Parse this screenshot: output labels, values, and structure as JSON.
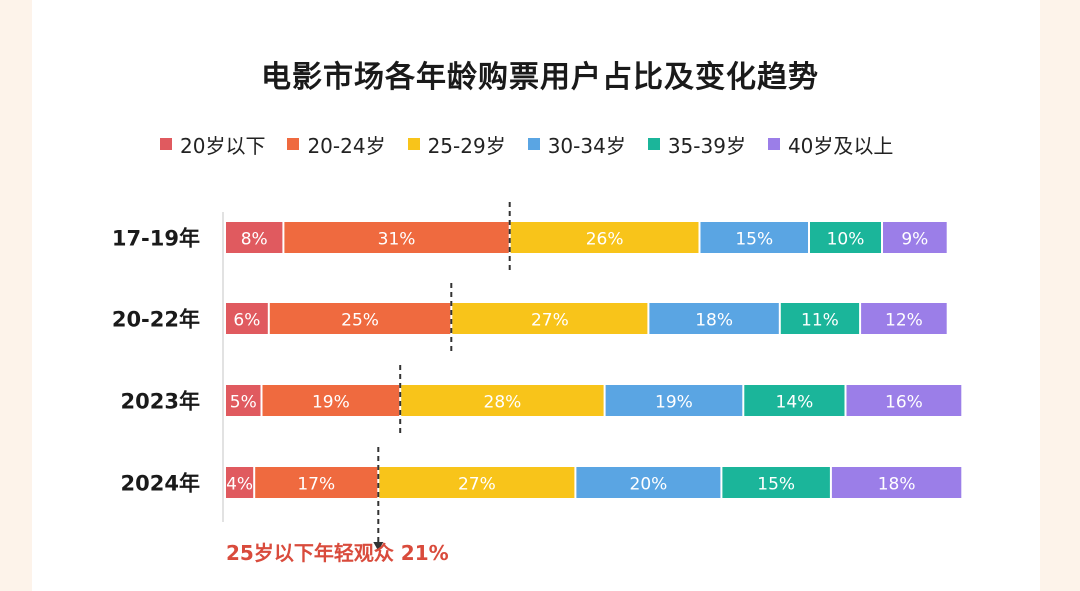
{
  "chart_data": {
    "type": "bar",
    "orientation": "horizontal",
    "stacked": true,
    "title": "电影市场各年龄购票用户占比及变化趋势",
    "categories": [
      "17-19年",
      "20-22年",
      "2023年",
      "2024年"
    ],
    "series": [
      {
        "name": "20岁以下",
        "values": [
          8,
          6,
          5,
          4
        ],
        "labels": [
          "8%",
          "6%",
          "5%",
          "4%"
        ],
        "color": "#e05a5f"
      },
      {
        "name": "20-24岁",
        "values": [
          31,
          25,
          19,
          17
        ],
        "labels": [
          "31%",
          "25%",
          "19%",
          "17%"
        ],
        "color": "#ef6a3f"
      },
      {
        "name": "25-29岁",
        "values": [
          26,
          27,
          28,
          27
        ],
        "labels": [
          "26%",
          "27%",
          "28%",
          "27%"
        ],
        "color": "#f8c41a"
      },
      {
        "name": "30-34岁",
        "values": [
          15,
          18,
          19,
          20
        ],
        "labels": [
          "15%",
          "18%",
          "19%",
          "20%"
        ],
        "color": "#5aa5e3"
      },
      {
        "name": "35-39岁",
        "values": [
          10,
          11,
          14,
          15
        ],
        "labels": [
          "10%",
          "11%",
          "14%",
          "15%"
        ],
        "color": "#1bb59a"
      },
      {
        "name": "40岁及以上",
        "values": [
          9,
          12,
          16,
          18
        ],
        "labels": [
          "9%",
          "12%",
          "16%",
          "18%"
        ],
        "color": "#9b7ee8"
      }
    ],
    "xlim": [
      0,
      100
    ],
    "legend_position": "top",
    "grid": false,
    "annotation": {
      "text": "25岁以下年轻观众 21%",
      "color": "#d94b3c"
    }
  }
}
